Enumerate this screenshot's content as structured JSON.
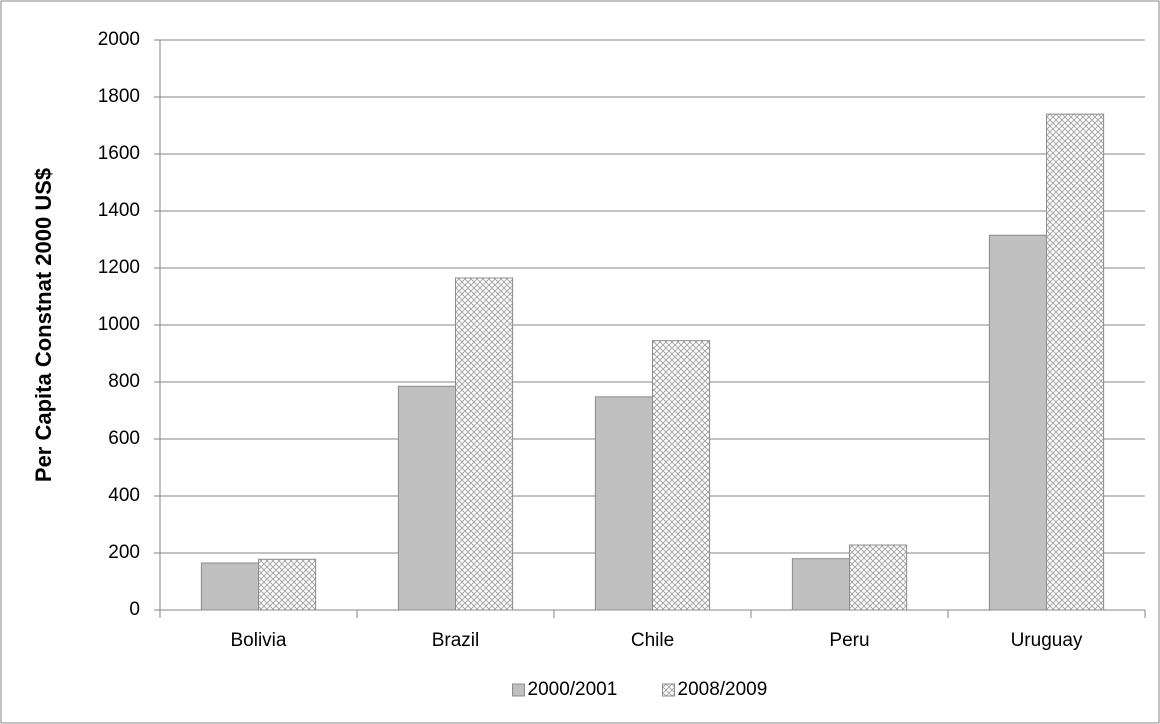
{
  "chart_data": {
    "type": "bar",
    "y_label": "Per Capita Constnat 2000 US$",
    "categories": [
      "Bolivia",
      "Brazil",
      "Chile",
      "Peru",
      "Uruguay"
    ],
    "series": [
      {
        "name": "2000/2001",
        "color": "#c0c0c0",
        "values": [
          165,
          785,
          748,
          180,
          1315
        ]
      },
      {
        "name": "2008/2009",
        "color": "#bdbdbd",
        "pattern": "crosshatch",
        "values": [
          178,
          1165,
          945,
          228,
          1740
        ]
      }
    ],
    "ylim": [
      0,
      2000
    ],
    "yticks": [
      0,
      200,
      400,
      600,
      800,
      1000,
      1200,
      1400,
      1600,
      1800,
      2000
    ],
    "grid": true,
    "legend": "bottom"
  }
}
